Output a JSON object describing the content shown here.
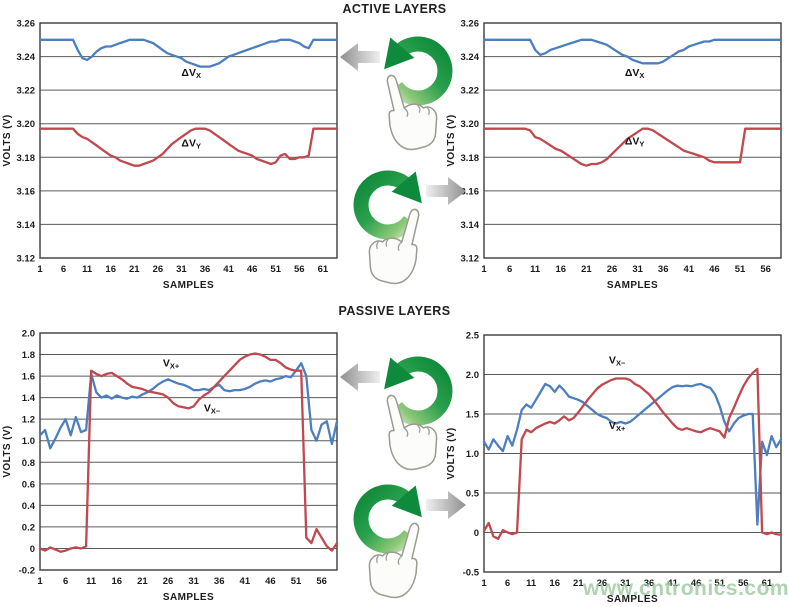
{
  "sections": [
    {
      "title": "ACTIVE LAYERS"
    },
    {
      "title": "PASSIVE LAYERS"
    }
  ],
  "watermark": "www.cntronics.com",
  "gestures": [
    {
      "name": "rotate-counterclockwise-gesture",
      "result_arrow": "left"
    },
    {
      "name": "rotate-clockwise-gesture",
      "result_arrow": "right"
    },
    {
      "name": "rotate-counterclockwise-gesture",
      "result_arrow": "left"
    },
    {
      "name": "rotate-clockwise-gesture",
      "result_arrow": "right"
    }
  ],
  "colors": {
    "blue_series": "#4d7fbf",
    "red_series": "#c0484e",
    "grid": "#5a5a5a",
    "axis_border": "#3c3c3c",
    "green_gesture": "#169a42",
    "gray_arrow": "#8f8f8f",
    "watermark": "#9cc79e"
  },
  "chart_data": [
    {
      "id": "active-left",
      "type": "line",
      "xlabel": "SAMPLES",
      "ylabel": "VOLTS (V)",
      "xlim": [
        1,
        64
      ],
      "ylim": [
        3.12,
        3.26
      ],
      "x_ticks": [
        1,
        6,
        11,
        16,
        21,
        26,
        31,
        36,
        41,
        46,
        51,
        56,
        61
      ],
      "y_ticks": [
        "3.26",
        "3.24",
        "3.22",
        "3.20",
        "3.18",
        "3.16",
        "3.14",
        "3.12"
      ],
      "annotations": [
        {
          "main": "ΔV",
          "sub": "X",
          "x": 31,
          "y": 3.2285
        },
        {
          "main": "ΔV",
          "sub": "Y",
          "x": 31,
          "y": 3.1865
        }
      ],
      "series": [
        {
          "name": "ΔVX",
          "color": "#4d7fbf",
          "values": [
            3.25,
            3.25,
            3.25,
            3.25,
            3.25,
            3.25,
            3.25,
            3.25,
            3.244,
            3.239,
            3.238,
            3.24,
            3.243,
            3.245,
            3.246,
            3.246,
            3.247,
            3.248,
            3.249,
            3.25,
            3.25,
            3.25,
            3.25,
            3.249,
            3.248,
            3.246,
            3.244,
            3.242,
            3.241,
            3.24,
            3.239,
            3.237,
            3.236,
            3.235,
            3.234,
            3.234,
            3.234,
            3.235,
            3.236,
            3.238,
            3.24,
            3.241,
            3.242,
            3.243,
            3.244,
            3.245,
            3.246,
            3.247,
            3.248,
            3.249,
            3.249,
            3.25,
            3.25,
            3.25,
            3.249,
            3.248,
            3.246,
            3.245,
            3.25,
            3.25,
            3.25,
            3.25,
            3.25,
            3.25
          ]
        },
        {
          "name": "ΔVY",
          "color": "#c0484e",
          "values": [
            3.197,
            3.197,
            3.197,
            3.197,
            3.197,
            3.197,
            3.197,
            3.197,
            3.194,
            3.192,
            3.191,
            3.189,
            3.187,
            3.185,
            3.183,
            3.181,
            3.18,
            3.178,
            3.177,
            3.176,
            3.175,
            3.175,
            3.176,
            3.177,
            3.178,
            3.18,
            3.182,
            3.185,
            3.188,
            3.19,
            3.192,
            3.194,
            3.196,
            3.197,
            3.197,
            3.197,
            3.196,
            3.194,
            3.192,
            3.19,
            3.188,
            3.186,
            3.184,
            3.183,
            3.182,
            3.181,
            3.179,
            3.178,
            3.177,
            3.176,
            3.177,
            3.181,
            3.182,
            3.179,
            3.179,
            3.18,
            3.18,
            3.181,
            3.197,
            3.197,
            3.197,
            3.197,
            3.197,
            3.197
          ]
        }
      ]
    },
    {
      "id": "active-right",
      "type": "line",
      "xlabel": "SAMPLES",
      "ylabel": "VOLTS (V)",
      "xlim": [
        1,
        59
      ],
      "ylim": [
        3.12,
        3.26
      ],
      "x_ticks": [
        1,
        6,
        11,
        16,
        21,
        26,
        31,
        36,
        41,
        46,
        51,
        56
      ],
      "y_ticks": [
        "3.26",
        "3.24",
        "3.22",
        "3.20",
        "3.18",
        "3.16",
        "3.14",
        "3.12"
      ],
      "annotations": [
        {
          "main": "ΔV",
          "sub": "X",
          "x": 28.5,
          "y": 3.2285
        },
        {
          "main": "ΔV",
          "sub": "Y",
          "x": 28.5,
          "y": 3.1875
        }
      ],
      "series": [
        {
          "name": "ΔVX",
          "color": "#4d7fbf",
          "values": [
            3.25,
            3.25,
            3.25,
            3.25,
            3.25,
            3.25,
            3.25,
            3.25,
            3.25,
            3.25,
            3.244,
            3.241,
            3.242,
            3.244,
            3.245,
            3.246,
            3.247,
            3.248,
            3.249,
            3.25,
            3.25,
            3.25,
            3.249,
            3.248,
            3.247,
            3.245,
            3.243,
            3.241,
            3.24,
            3.238,
            3.237,
            3.236,
            3.236,
            3.236,
            3.236,
            3.237,
            3.239,
            3.241,
            3.243,
            3.244,
            3.246,
            3.247,
            3.248,
            3.249,
            3.249,
            3.25,
            3.25,
            3.25,
            3.25,
            3.25,
            3.25,
            3.25,
            3.25,
            3.25,
            3.25,
            3.25,
            3.25,
            3.25,
            3.25
          ]
        },
        {
          "name": "ΔVY",
          "color": "#c0484e",
          "values": [
            3.197,
            3.197,
            3.197,
            3.197,
            3.197,
            3.197,
            3.197,
            3.197,
            3.197,
            3.196,
            3.192,
            3.191,
            3.189,
            3.187,
            3.185,
            3.184,
            3.182,
            3.18,
            3.178,
            3.176,
            3.175,
            3.176,
            3.176,
            3.177,
            3.179,
            3.182,
            3.185,
            3.188,
            3.191,
            3.193,
            3.195,
            3.197,
            3.197,
            3.196,
            3.194,
            3.192,
            3.19,
            3.188,
            3.186,
            3.184,
            3.183,
            3.182,
            3.181,
            3.18,
            3.178,
            3.177,
            3.177,
            3.177,
            3.177,
            3.177,
            3.177,
            3.197,
            3.197,
            3.197,
            3.197,
            3.197,
            3.197,
            3.197,
            3.197
          ]
        }
      ]
    },
    {
      "id": "passive-left",
      "type": "line",
      "xlabel": "SAMPLES",
      "ylabel": "VOLTS (V)",
      "xlim": [
        1,
        59
      ],
      "ylim": [
        -0.2,
        2.0
      ],
      "x_ticks": [
        1,
        6,
        11,
        16,
        21,
        26,
        31,
        36,
        41,
        46,
        51,
        56
      ],
      "y_ticks": [
        "2.0",
        "1.8",
        "1.6",
        "1.4",
        "1.2",
        "1.0",
        "0.8",
        "0.6",
        "0.4",
        "0.2",
        "0",
        "-0.2"
      ],
      "annotations": [
        {
          "main": "V",
          "sub": "X+",
          "x": 25,
          "y": 1.69
        },
        {
          "main": "V",
          "sub": "X−",
          "x": 33,
          "y": 1.27
        }
      ],
      "series": [
        {
          "name": "VX+",
          "color": "#4d7fbf",
          "values": [
            1.05,
            1.1,
            0.93,
            1.02,
            1.12,
            1.2,
            1.05,
            1.22,
            1.08,
            1.1,
            1.62,
            1.45,
            1.4,
            1.42,
            1.39,
            1.42,
            1.4,
            1.39,
            1.41,
            1.4,
            1.43,
            1.45,
            1.48,
            1.52,
            1.55,
            1.57,
            1.55,
            1.53,
            1.52,
            1.5,
            1.47,
            1.47,
            1.48,
            1.47,
            1.5,
            1.52,
            1.47,
            1.46,
            1.47,
            1.47,
            1.48,
            1.5,
            1.53,
            1.55,
            1.56,
            1.55,
            1.57,
            1.58,
            1.6,
            1.59,
            1.65,
            1.72,
            1.6,
            1.1,
            1.0,
            1.15,
            1.18,
            0.97,
            1.18
          ]
        },
        {
          "name": "VX−",
          "color": "#c0484e",
          "values": [
            0.0,
            -0.02,
            0.01,
            -0.01,
            -0.03,
            -0.02,
            0.0,
            0.01,
            0.0,
            0.02,
            1.65,
            1.62,
            1.6,
            1.62,
            1.63,
            1.6,
            1.57,
            1.53,
            1.5,
            1.49,
            1.48,
            1.46,
            1.45,
            1.44,
            1.43,
            1.4,
            1.35,
            1.32,
            1.31,
            1.3,
            1.32,
            1.38,
            1.42,
            1.45,
            1.5,
            1.55,
            1.6,
            1.65,
            1.7,
            1.75,
            1.78,
            1.8,
            1.81,
            1.8,
            1.78,
            1.75,
            1.75,
            1.72,
            1.68,
            1.66,
            1.65,
            1.65,
            0.1,
            0.05,
            0.18,
            0.1,
            0.02,
            -0.02,
            0.05
          ]
        }
      ]
    },
    {
      "id": "passive-right",
      "type": "line",
      "xlabel": "SAMPLES",
      "ylabel": "VOLTS (V)",
      "xlim": [
        1,
        64
      ],
      "ylim": [
        -0.5,
        2.5
      ],
      "x_ticks": [
        1,
        6,
        11,
        16,
        21,
        26,
        31,
        36,
        41,
        46,
        51,
        56,
        61
      ],
      "y_ticks": [
        "2.5",
        "2.0",
        "1.5",
        "1.0",
        "0.5",
        "0",
        "-0.5"
      ],
      "annotations": [
        {
          "main": "V",
          "sub": "X−",
          "x": 27.5,
          "y": 2.14
        },
        {
          "main": "V",
          "sub": "X+",
          "x": 27.5,
          "y": 1.31
        }
      ],
      "series": [
        {
          "name": "VX+",
          "color": "#4d7fbf",
          "values": [
            1.15,
            1.05,
            1.18,
            1.1,
            1.03,
            1.22,
            1.1,
            1.3,
            1.55,
            1.62,
            1.58,
            1.68,
            1.78,
            1.88,
            1.85,
            1.78,
            1.86,
            1.8,
            1.72,
            1.7,
            1.68,
            1.65,
            1.6,
            1.55,
            1.5,
            1.47,
            1.45,
            1.4,
            1.38,
            1.4,
            1.38,
            1.4,
            1.45,
            1.5,
            1.55,
            1.6,
            1.65,
            1.7,
            1.75,
            1.8,
            1.84,
            1.86,
            1.85,
            1.86,
            1.85,
            1.87,
            1.88,
            1.85,
            1.83,
            1.75,
            1.6,
            1.4,
            1.28,
            1.38,
            1.45,
            1.48,
            1.5,
            1.5,
            0.1,
            1.15,
            0.98,
            1.22,
            1.08,
            1.18
          ]
        },
        {
          "name": "VX−",
          "color": "#c0484e",
          "values": [
            0.02,
            0.12,
            -0.05,
            -0.08,
            0.03,
            0.0,
            -0.02,
            0.0,
            1.18,
            1.3,
            1.27,
            1.32,
            1.35,
            1.38,
            1.4,
            1.38,
            1.42,
            1.47,
            1.42,
            1.45,
            1.52,
            1.6,
            1.68,
            1.75,
            1.82,
            1.87,
            1.9,
            1.93,
            1.95,
            1.95,
            1.95,
            1.93,
            1.88,
            1.85,
            1.8,
            1.75,
            1.68,
            1.6,
            1.52,
            1.45,
            1.38,
            1.32,
            1.3,
            1.32,
            1.3,
            1.28,
            1.27,
            1.3,
            1.32,
            1.3,
            1.28,
            1.2,
            1.45,
            1.58,
            1.72,
            1.85,
            1.95,
            2.02,
            2.07,
            0.0,
            -0.02,
            0.0,
            -0.02,
            -0.03
          ]
        }
      ]
    }
  ]
}
